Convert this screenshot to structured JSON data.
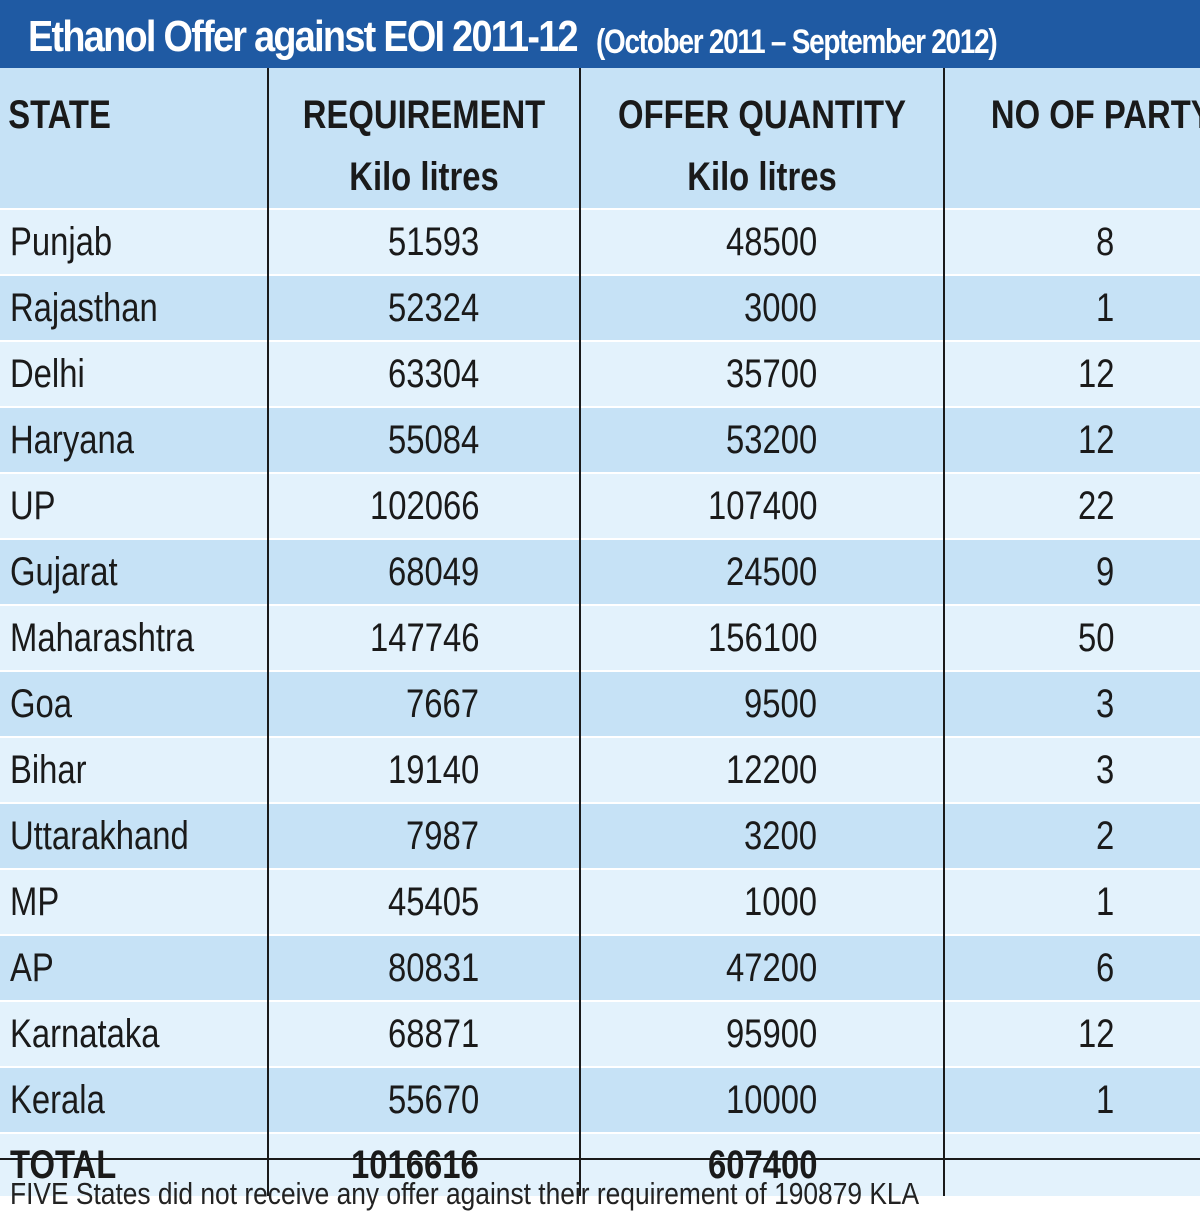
{
  "title": "Ethanol Offer against EOI 2011-12",
  "subtitle": "(October 2011 – September 2012)",
  "headers": {
    "state": "STATE",
    "requirement": "REQUIREMENT",
    "requirement_unit": "Kilo litres",
    "offer": "OFFER QUANTITY",
    "offer_unit": "Kilo litres",
    "party": "NO OF PARTY"
  },
  "rows": [
    {
      "state": "Punjab",
      "requirement": "51593",
      "offer": "48500",
      "party": "8"
    },
    {
      "state": "Rajasthan",
      "requirement": "52324",
      "offer": "3000",
      "party": "1"
    },
    {
      "state": "Delhi",
      "requirement": "63304",
      "offer": "35700",
      "party": "12"
    },
    {
      "state": "Haryana",
      "requirement": "55084",
      "offer": "53200",
      "party": "12"
    },
    {
      "state": "UP",
      "requirement": "102066",
      "offer": "107400",
      "party": "22"
    },
    {
      "state": "Gujarat",
      "requirement": "68049",
      "offer": "24500",
      "party": "9"
    },
    {
      "state": "Maharashtra",
      "requirement": "147746",
      "offer": "156100",
      "party": "50"
    },
    {
      "state": "Goa",
      "requirement": "7667",
      "offer": "9500",
      "party": "3"
    },
    {
      "state": "Bihar",
      "requirement": "19140",
      "offer": "12200",
      "party": "3"
    },
    {
      "state": "Uttarakhand",
      "requirement": "7987",
      "offer": "3200",
      "party": "2"
    },
    {
      "state": "MP",
      "requirement": "45405",
      "offer": "1000",
      "party": "1"
    },
    {
      "state": "AP",
      "requirement": "80831",
      "offer": "47200",
      "party": "6"
    },
    {
      "state": "Karnataka",
      "requirement": "68871",
      "offer": "95900",
      "party": "12"
    },
    {
      "state": "Kerala",
      "requirement": "55670",
      "offer": "10000",
      "party": "1"
    }
  ],
  "total": {
    "label": "TOTAL",
    "requirement": "1016616",
    "offer": "607400",
    "party": ""
  },
  "footnote": "FIVE States did not receive any offer against their requirement of 190879 KLA",
  "colors": {
    "title_bg": "#1f5aa3",
    "header_bg": "#c6e2f6",
    "row_light": "#e3f2fc",
    "row_dark": "#c6e2f6"
  }
}
